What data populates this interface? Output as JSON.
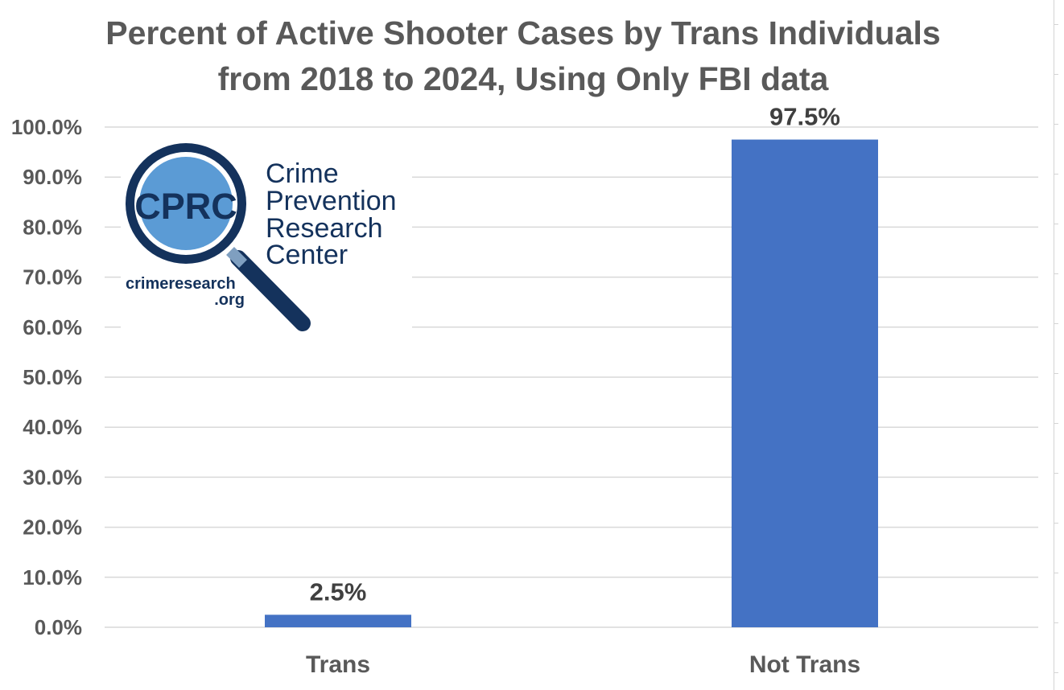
{
  "chart_data": {
    "type": "bar",
    "title": "Percent of Active Shooter Cases by Trans Individuals from 2018 to 2024, Using Only FBI data",
    "title_lines": [
      "Percent of Active Shooter Cases by Trans Individuals",
      "from 2018 to 2024, Using Only FBI data"
    ],
    "categories": [
      "Trans",
      "Not Trans"
    ],
    "values": [
      2.5,
      97.5
    ],
    "data_labels": [
      "2.5%",
      "97.5%"
    ],
    "xlabel": "",
    "ylabel": "",
    "ylim": [
      0,
      100
    ],
    "yticks": [
      {
        "value": 0,
        "label": "0.0%"
      },
      {
        "value": 10,
        "label": "10.0%"
      },
      {
        "value": 20,
        "label": "20.0%"
      },
      {
        "value": 30,
        "label": "30.0%"
      },
      {
        "value": 40,
        "label": "40.0%"
      },
      {
        "value": 50,
        "label": "50.0%"
      },
      {
        "value": 60,
        "label": "60.0%"
      },
      {
        "value": 70,
        "label": "70.0%"
      },
      {
        "value": 80,
        "label": "80.0%"
      },
      {
        "value": 90,
        "label": "90.0%"
      },
      {
        "value": 100,
        "label": "100.0%"
      }
    ],
    "grid": true,
    "bar_color": "#4472c4"
  },
  "logo": {
    "initials": "CPRC",
    "name_lines": [
      "Crime",
      "Prevention",
      "Research",
      "Center"
    ],
    "site_lines": [
      "crimeresearch",
      ".org"
    ],
    "dark_color": "#14325c",
    "lens_color": "#5b9bd5"
  },
  "colors": {
    "text": "#595959",
    "axis_text": "#404040",
    "grid": "#d9d9d9"
  }
}
